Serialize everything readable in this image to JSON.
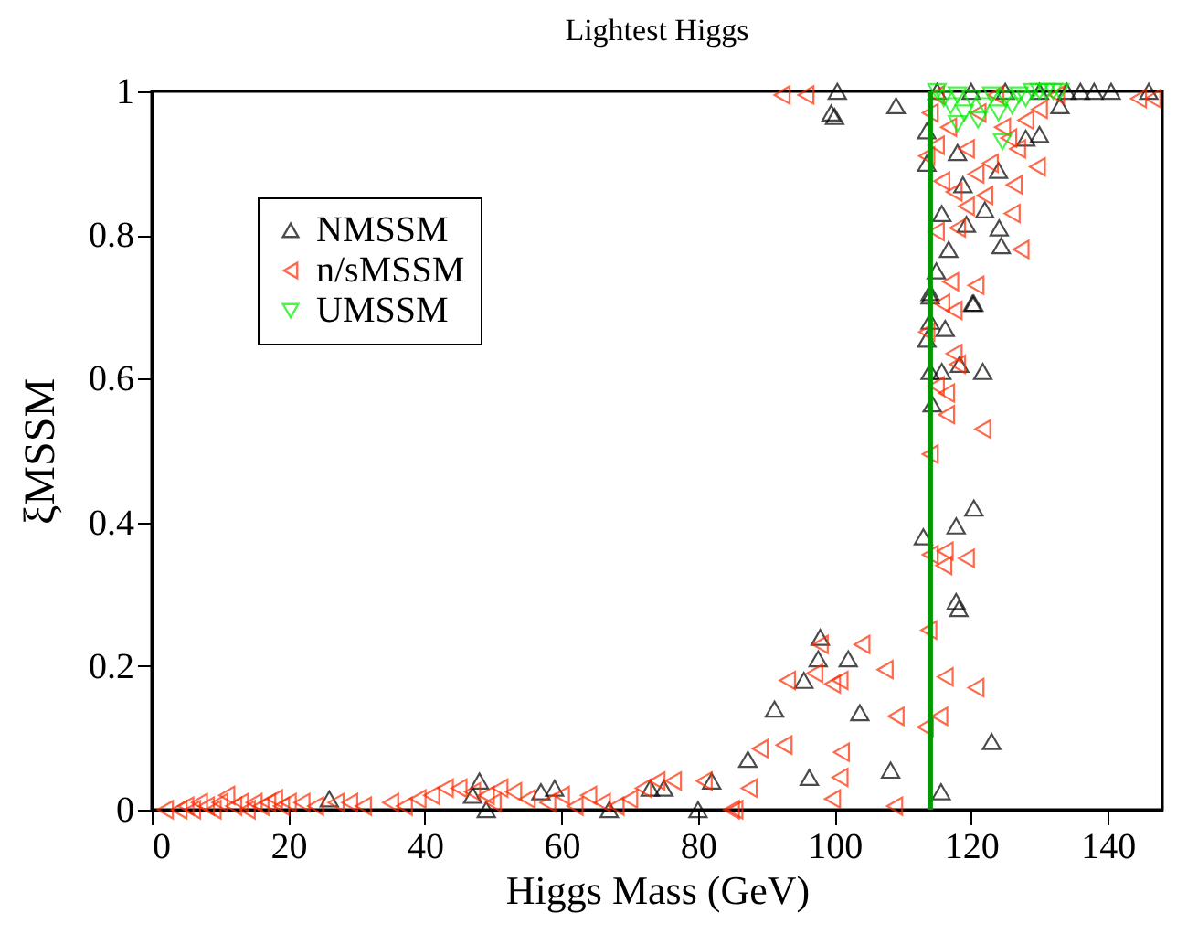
{
  "chart_data": {
    "type": "scatter",
    "title": "Lightest Higgs",
    "xlabel": "Higgs Mass (GeV)",
    "ylabel": "ξMSSM",
    "xlim": [
      0,
      148
    ],
    "ylim": [
      0,
      1
    ],
    "xticks": [
      0,
      20,
      40,
      60,
      80,
      100,
      120,
      140
    ],
    "yticks": [
      0,
      0.2,
      0.4,
      0.6,
      0.8,
      1
    ],
    "grid": false,
    "legend": "top left",
    "ref_lines": [
      {
        "axis": "x",
        "value": 114,
        "color": "#009900",
        "line_style": "solid"
      }
    ],
    "series": [
      {
        "name": "NMSSM",
        "color": "#000000",
        "marker": "triangle-up",
        "x": [
          26,
          47,
          48,
          49,
          57,
          59,
          67,
          73,
          80,
          75,
          82,
          87.3,
          91.2,
          95.5,
          97.6,
          97.9,
          96.3,
          102,
          103.7,
          108.2,
          115.6,
          123,
          117.8,
          118.2,
          114,
          120.4,
          114,
          116.2,
          113.5,
          114,
          115.7,
          118.3,
          121.7,
          114.3,
          120.4,
          117.8,
          113,
          113.5,
          113.5,
          118.8,
          124,
          128,
          130,
          133,
          115.7,
          119.3,
          124.1,
          124.4,
          116.7,
          114.9,
          120.2,
          114,
          122,
          118,
          136,
          138,
          140.5,
          146,
          109,
          100.4,
          100,
          99.5,
          115,
          120,
          125,
          130,
          134
        ],
        "values": [
          0.015,
          0.02,
          0.04,
          0.0,
          0.025,
          0.03,
          0.0,
          0.03,
          0.0,
          0.03,
          0.04,
          0.07,
          0.14,
          0.18,
          0.21,
          0.24,
          0.045,
          0.21,
          0.135,
          0.055,
          0.025,
          0.095,
          0.29,
          0.28,
          0.715,
          0.705,
          0.68,
          0.67,
          0.655,
          0.61,
          0.61,
          0.62,
          0.61,
          0.565,
          0.42,
          0.395,
          0.38,
          0.945,
          0.9,
          0.87,
          0.89,
          0.935,
          0.94,
          0.98,
          0.83,
          0.815,
          0.81,
          0.785,
          0.78,
          0.75,
          0.705,
          0.72,
          0.835,
          0.915,
          1.0,
          1.0,
          1.0,
          1.0,
          0.98,
          1.0,
          0.965,
          0.97,
          1.0,
          1.0,
          1.0,
          1.0,
          1.0
        ]
      },
      {
        "name": "n/sMSSM",
        "color": "#ff2a00",
        "marker": "triangle-left",
        "x": [
          2,
          4,
          5,
          6,
          7,
          8,
          9,
          10,
          11,
          12,
          13,
          14,
          15,
          16,
          17,
          18,
          19,
          20,
          22,
          24,
          27,
          29,
          31,
          35,
          37,
          39,
          41,
          43,
          45,
          47,
          49,
          50,
          51,
          53,
          55,
          58,
          60,
          62,
          64,
          66,
          68,
          70,
          72,
          74,
          76.4,
          80.9,
          84.9,
          85.4,
          87.5,
          89.1,
          92.6,
          93.1,
          97.1,
          97.9,
          99.7,
          100.8,
          101,
          100.8,
          99.7,
          104,
          107.4,
          109,
          108.8,
          113.8,
          116.2,
          120.7,
          115.4,
          113.3,
          115.7,
          117.5,
          113.5,
          117.5,
          118,
          114.9,
          116.4,
          116.4,
          121.7,
          114,
          114,
          116.2,
          119.3,
          116,
          129.7,
          126.3,
          127.3,
          118,
          126,
          119.3,
          122,
          114.9,
          117,
          120.7,
          130,
          128,
          124.6,
          121,
          116.7,
          114.9,
          119.3,
          122.8,
          115.7,
          114,
          114.9,
          123.6,
          132.5,
          125.5,
          117.5,
          120.7,
          113.5,
          126.8,
          144.5,
          146.6,
          92.3,
          95.8
        ],
        "values": [
          0,
          0,
          0.005,
          0,
          0.01,
          0.005,
          0,
          0.01,
          0.02,
          0.005,
          0.01,
          0,
          0.01,
          0.005,
          0.01,
          0.015,
          0.005,
          0.01,
          0.01,
          0.005,
          0.01,
          0.01,
          0.005,
          0.01,
          0.005,
          0.015,
          0.02,
          0.03,
          0.03,
          0.025,
          0.02,
          0.01,
          0.03,
          0.025,
          0.015,
          0.01,
          0.02,
          0.005,
          0.02,
          0.01,
          0.005,
          0.015,
          0.03,
          0.04,
          0.04,
          0.04,
          0.0,
          0.0,
          0.03,
          0.085,
          0.09,
          0.18,
          0.19,
          0.23,
          0.175,
          0.18,
          0.08,
          0.045,
          0.015,
          0.23,
          0.195,
          0.13,
          0.005,
          0.25,
          0.185,
          0.17,
          0.13,
          0.115,
          0.705,
          0.695,
          0.665,
          0.635,
          0.62,
          0.59,
          0.58,
          0.55,
          0.53,
          0.495,
          0.355,
          0.36,
          0.35,
          0.34,
          0.895,
          0.87,
          0.78,
          0.81,
          0.83,
          0.84,
          0.855,
          0.805,
          0.735,
          0.73,
          0.975,
          0.96,
          0.95,
          0.97,
          0.95,
          0.925,
          0.92,
          0.9,
          0.875,
          0.97,
          0.995,
          0.995,
          0.995,
          0.935,
          0.86,
          0.885,
          0.91,
          0.92,
          0.99,
          0.99,
          0.995,
          0.995
        ]
      },
      {
        "name": "UMSSM",
        "color": "#00ee00",
        "marker": "triangle-down",
        "x": [
          115,
          116,
          117,
          118,
          119,
          120,
          121,
          122,
          123,
          124,
          125,
          126,
          127,
          128,
          129,
          130,
          131,
          132,
          133,
          118,
          124.6
        ],
        "values": [
          1,
          0.99,
          0.98,
          0.995,
          0.97,
          0.99,
          0.96,
          0.98,
          0.995,
          0.97,
          0.99,
          0.98,
          0.995,
          0.99,
          1,
          1,
          1,
          1,
          1,
          0.955,
          0.93
        ]
      }
    ]
  }
}
